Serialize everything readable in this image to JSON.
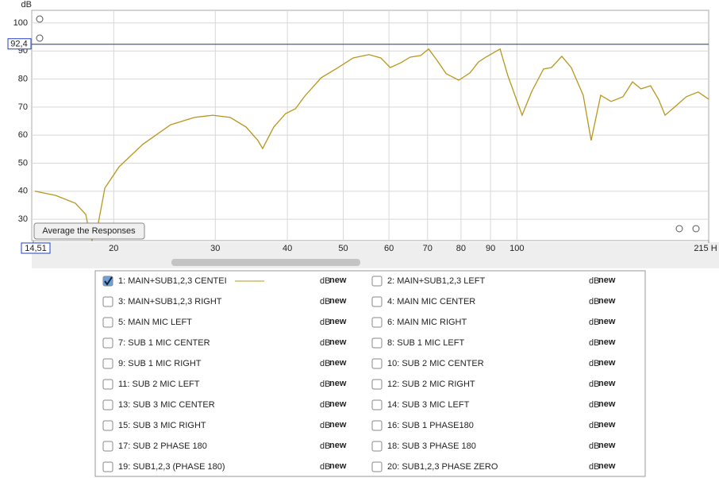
{
  "chart_data": {
    "type": "line",
    "y_label": "dB",
    "log_x": true,
    "grid": true,
    "xlim": [
      14.51,
      215
    ],
    "ylim": [
      22.4,
      104.5
    ],
    "xticks": [
      {
        "value": 14.51,
        "label": "14,51"
      },
      20,
      30,
      40,
      50,
      60,
      70,
      80,
      90,
      100,
      {
        "value": 215,
        "label": "215 H"
      }
    ],
    "yticks": [
      30,
      40,
      50,
      60,
      70,
      80,
      90,
      100
    ],
    "cursor": {
      "value": 92.4,
      "label": "92,4"
    },
    "x": [
      14.6,
      15.86,
      17.17,
      17.89,
      18.11,
      18.34,
      18.82,
      19.3,
      20.43,
      22.46,
      25.1,
      27.6,
      29.69,
      31.84,
      33.91,
      35.56,
      36.23,
      37.89,
      39.73,
      41.3,
      43.0,
      45.8,
      48.8,
      52.0,
      55.4,
      58.1,
      60.3,
      62.9,
      65.3,
      68.1,
      70.3,
      72.5,
      75.4,
      79.3,
      82.9,
      85.8,
      88.3,
      93.5,
      96.4,
      102.1,
      106.1,
      111.2,
      114.8,
      119.6,
      124.2,
      130.3,
      134.5,
      139.7,
      145.6,
      152.7,
      158.6,
      164.1,
      170.5,
      176.0,
      180.6,
      187.6,
      196.6,
      206.2,
      215
    ],
    "series": [
      {
        "color": "#b8961e",
        "values": [
          40.0,
          38.5,
          35.7,
          31.7,
          26.1,
          22.5,
          28.9,
          41.1,
          48.7,
          56.7,
          63.7,
          66.3,
          67.1,
          66.3,
          62.9,
          58.1,
          55.2,
          62.9,
          67.7,
          69.4,
          74.2,
          80.5,
          83.9,
          87.5,
          88.7,
          87.5,
          84.1,
          85.8,
          87.8,
          88.4,
          90.7,
          87.0,
          81.9,
          79.6,
          82.2,
          86.1,
          87.8,
          90.7,
          81.3,
          67.1,
          75.6,
          83.6,
          84.1,
          88.1,
          84.1,
          74.2,
          58.1,
          74.2,
          72.0,
          73.7,
          79.0,
          76.5,
          77.6,
          72.8,
          67.1,
          70.0,
          73.7,
          75.4,
          72.8
        ]
      }
    ]
  },
  "button": "Average the Responses",
  "icon_text": [
    "dB",
    "new"
  ],
  "measurements": [
    {
      "label": "1: MAIN+SUB1,2,3 CENTEI",
      "color": "#b8961e",
      "checked": true
    },
    {
      "label": "2: MAIN+SUB1,2,3 LEFT",
      "color": "#2a8fa0",
      "checked": false
    },
    {
      "label": "3: MAIN+SUB1,2,3 RIGHT",
      "color": "#b01eb0",
      "checked": false
    },
    {
      "label": "4: MAIN MIC CENTER",
      "color": "#1e8f8f",
      "checked": false
    },
    {
      "label": "5: MAIN MIC LEFT",
      "color": "#2a7fc0",
      "checked": false
    },
    {
      "label": "6: MAIN MIC RIGHT",
      "color": "#b02a9f",
      "checked": false
    },
    {
      "label": "7: SUB 1 MIC CENTER",
      "color": "#c89a10",
      "checked": false
    },
    {
      "label": "8: SUB 1 MIC LEFT",
      "color": "#c040c0",
      "checked": false
    },
    {
      "label": "9: SUB 1 MIC RIGHT",
      "color": "#8a3aa8",
      "checked": false
    },
    {
      "label": "10: SUB 2 MIC CENTER",
      "color": "#1a2a9a",
      "checked": false
    },
    {
      "label": "11: SUB 2 MIC LEFT",
      "color": "#c81e1e",
      "checked": false
    },
    {
      "label": "12: SUB 2 MIC RIGHT",
      "color": "#20a860",
      "checked": false
    },
    {
      "label": "13: SUB 3 MIC CENTER",
      "color": "#2a90c0",
      "checked": false
    },
    {
      "label": "14: SUB 3 MIC LEFT",
      "color": "#1a7a1a",
      "checked": false
    },
    {
      "label": "15: SUB 3 MIC RIGHT",
      "color": "#1a7a1a",
      "checked": false
    },
    {
      "label": "16: SUB 1 PHASE180",
      "color": "#b01010",
      "checked": false
    },
    {
      "label": "17: SUB 2 PHASE 180",
      "color": "#20a860",
      "checked": false
    },
    {
      "label": "18: SUB 3 PHASE 180",
      "color": "#a040a0",
      "checked": false
    },
    {
      "label": "19: SUB1,2,3 (PHASE 180)",
      "color": "#8040b0",
      "checked": false
    },
    {
      "label": "20: SUB1,2,3 PHASE ZERO",
      "color": "#101080",
      "checked": false
    }
  ]
}
